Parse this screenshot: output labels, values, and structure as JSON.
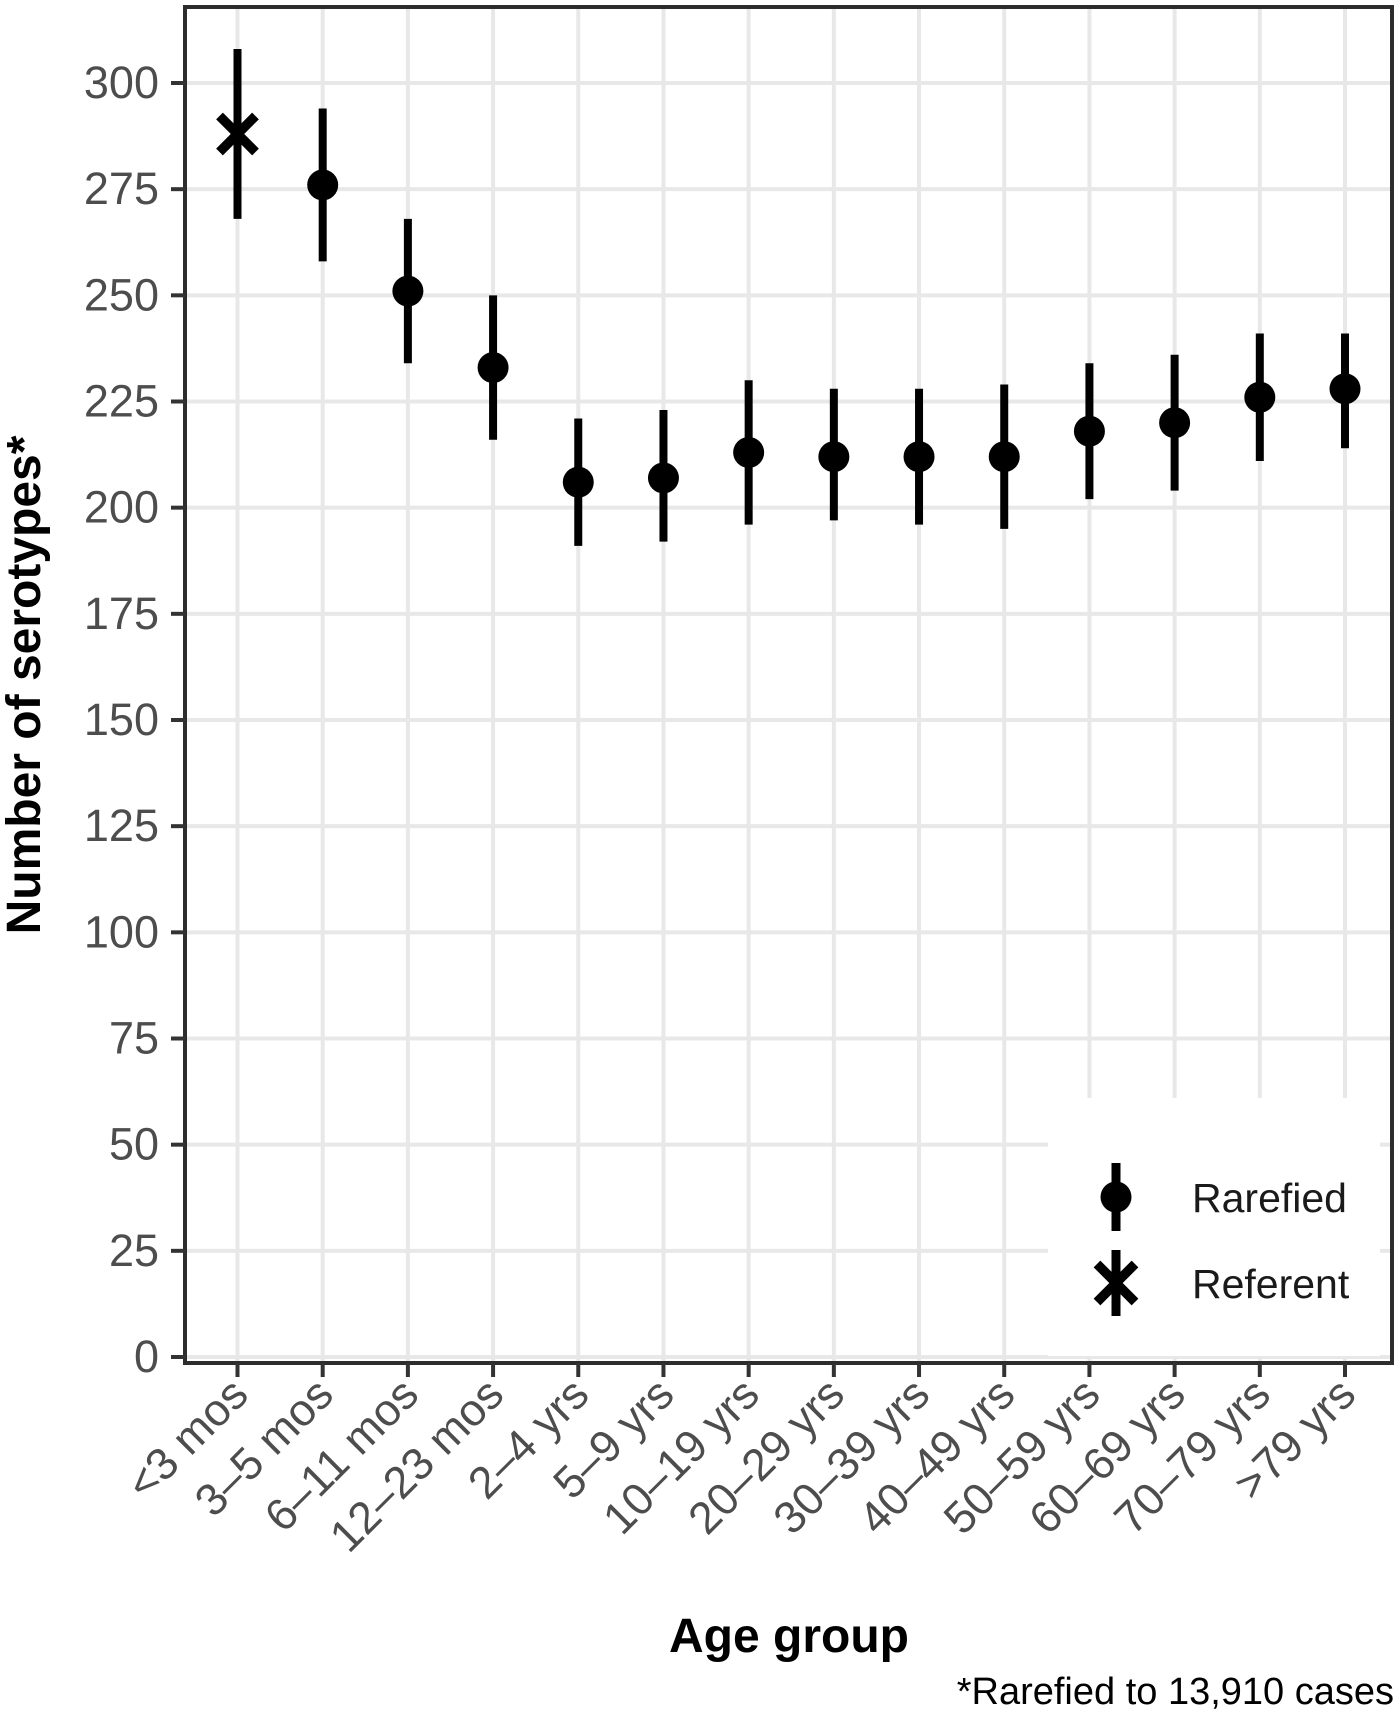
{
  "figure": {
    "ylabel": "Number of serotypes*",
    "xlabel": "Age group",
    "footnote": "*Rarefied to 13,910 cases"
  },
  "legend": {
    "position": "inside bottom-right",
    "items": [
      {
        "label": "Rarefied",
        "marker": "circle"
      },
      {
        "label": "Referent",
        "marker": "x"
      }
    ]
  },
  "colors": {
    "marker": "#000000",
    "grid": "#e8e8e8",
    "axis_text": "#4d4d4d",
    "tick": "#333333",
    "border": "#2d2d2d",
    "background": "#ffffff"
  },
  "chart_data": {
    "type": "scatter",
    "subtype": "pointrange-with-error-bars",
    "title": "",
    "xlabel": "Age group",
    "ylabel": "Number of serotypes*",
    "footnote": "*Rarefied to 13,910 cases",
    "grid": true,
    "legend_position": "inside bottom-right",
    "ylim": [
      0,
      317
    ],
    "yticks": [
      0,
      25,
      50,
      75,
      100,
      125,
      150,
      175,
      200,
      225,
      250,
      275,
      300
    ],
    "categories": [
      "<3 mos",
      "3–5 mos",
      "6–11 mos",
      "12–23 mos",
      "2–4 yrs",
      "5–9 yrs",
      "10–19 yrs",
      "20–29 yrs",
      "30–39 yrs",
      "40–49 yrs",
      "50–59 yrs",
      "60–69 yrs",
      "70–79 yrs",
      ">79 yrs"
    ],
    "points": [
      {
        "category": "<3 mos",
        "series": "Referent",
        "marker": "x",
        "value": 288,
        "ci_low": 268,
        "ci_high": 308
      },
      {
        "category": "3–5 mos",
        "series": "Rarefied",
        "marker": "circle",
        "value": 276,
        "ci_low": 258,
        "ci_high": 294
      },
      {
        "category": "6–11 mos",
        "series": "Rarefied",
        "marker": "circle",
        "value": 251,
        "ci_low": 234,
        "ci_high": 268
      },
      {
        "category": "12–23 mos",
        "series": "Rarefied",
        "marker": "circle",
        "value": 233,
        "ci_low": 216,
        "ci_high": 250
      },
      {
        "category": "2–4 yrs",
        "series": "Rarefied",
        "marker": "circle",
        "value": 206,
        "ci_low": 191,
        "ci_high": 221
      },
      {
        "category": "5–9 yrs",
        "series": "Rarefied",
        "marker": "circle",
        "value": 207,
        "ci_low": 192,
        "ci_high": 223
      },
      {
        "category": "10–19 yrs",
        "series": "Rarefied",
        "marker": "circle",
        "value": 213,
        "ci_low": 196,
        "ci_high": 230
      },
      {
        "category": "20–29 yrs",
        "series": "Rarefied",
        "marker": "circle",
        "value": 212,
        "ci_low": 197,
        "ci_high": 228
      },
      {
        "category": "30–39 yrs",
        "series": "Rarefied",
        "marker": "circle",
        "value": 212,
        "ci_low": 196,
        "ci_high": 228
      },
      {
        "category": "40–49 yrs",
        "series": "Rarefied",
        "marker": "circle",
        "value": 212,
        "ci_low": 195,
        "ci_high": 229
      },
      {
        "category": "50–59 yrs",
        "series": "Rarefied",
        "marker": "circle",
        "value": 218,
        "ci_low": 202,
        "ci_high": 234
      },
      {
        "category": "60–69 yrs",
        "series": "Rarefied",
        "marker": "circle",
        "value": 220,
        "ci_low": 204,
        "ci_high": 236
      },
      {
        "category": "70–79 yrs",
        "series": "Rarefied",
        "marker": "circle",
        "value": 226,
        "ci_low": 211,
        "ci_high": 241
      },
      {
        "category": ">79 yrs",
        "series": "Rarefied",
        "marker": "circle",
        "value": 228,
        "ci_low": 214,
        "ci_high": 241
      }
    ]
  }
}
